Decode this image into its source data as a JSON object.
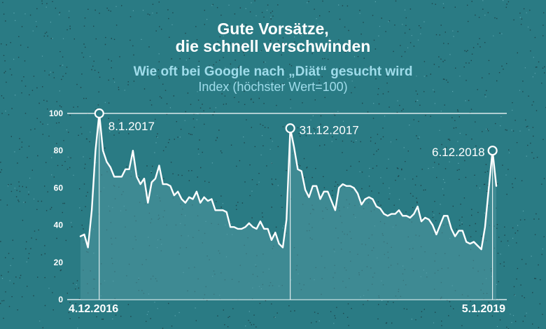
{
  "header": {
    "title_line1": "Gute Vorsätze,",
    "title_line2": "die schnell verschwinden",
    "subtitle": "Wie oft bei Google nach „Diät“ gesucht wird",
    "subtitle2": "Index (höchster Wert=100)"
  },
  "colors": {
    "background": "#2a7b84",
    "line": "#ffffff",
    "subtitle": "#9fdcea",
    "area_fill": "#4f97a0"
  },
  "chart_data": {
    "type": "area",
    "title": "Gute Vorsätze, die schnell verschwinden",
    "subtitle": "Wie oft bei Google nach „Diät“ gesucht wird",
    "ylabel": "Index (höchster Wert=100)",
    "ylim": [
      0,
      100
    ],
    "yticks": [
      0,
      20,
      40,
      60,
      80,
      100
    ],
    "x_start_label": "4.12.2016",
    "x_end_label": "5.1.2019",
    "grid": false,
    "values": [
      34,
      35,
      28,
      48,
      80,
      100,
      80,
      74,
      71,
      66,
      66,
      66,
      70,
      70,
      80,
      66,
      62,
      65,
      52,
      63,
      65,
      72,
      62,
      62,
      61,
      56,
      58,
      54,
      52,
      55,
      54,
      58,
      52,
      55,
      53,
      54,
      48,
      48,
      48,
      47,
      39,
      39,
      38,
      38,
      39,
      41,
      39,
      38,
      42,
      38,
      38,
      32,
      36,
      30,
      28,
      43,
      92,
      82,
      70,
      69,
      59,
      55,
      61,
      61,
      54,
      58,
      58,
      53,
      48,
      60,
      62,
      61,
      61,
      60,
      57,
      51,
      54,
      55,
      54,
      50,
      49,
      46,
      45,
      46,
      46,
      48,
      45,
      45,
      44,
      46,
      50,
      42,
      44,
      43,
      40,
      35,
      40,
      45,
      45,
      38,
      34,
      37,
      37,
      31,
      30,
      31,
      29,
      27,
      39,
      60,
      80,
      61
    ],
    "annotations": [
      {
        "label": "8.1.2017",
        "index": 5,
        "value": 100
      },
      {
        "label": "31.12.2017",
        "index": 56,
        "value": 92
      },
      {
        "label": "6.12.2018",
        "index": 110,
        "value": 80
      }
    ]
  }
}
